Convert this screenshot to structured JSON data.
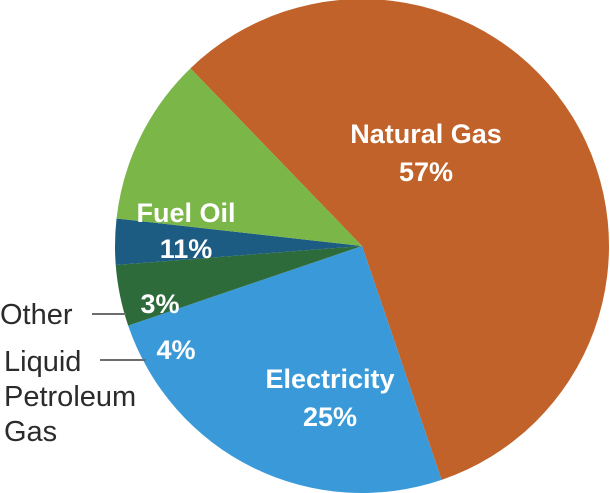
{
  "chart_data": {
    "type": "pie",
    "slices": [
      {
        "name": "Natural Gas",
        "value": 57,
        "label": "57%",
        "color": "#c0622a"
      },
      {
        "name": "Electricity",
        "value": 25,
        "label": "25%",
        "color": "#3a9ad9"
      },
      {
        "name": "Liquid Petroleum Gas",
        "value": 4,
        "label": "4%",
        "color": "#2e6b3a"
      },
      {
        "name": "Other",
        "value": 3,
        "label": "3%",
        "color": "#1d5c82"
      },
      {
        "name": "Fuel Oil",
        "value": 11,
        "label": "11%",
        "color": "#7ab648"
      }
    ],
    "external_labels": {
      "other": "Other",
      "lpg": [
        "Liquid",
        "Petroleum",
        "Gas"
      ]
    }
  }
}
